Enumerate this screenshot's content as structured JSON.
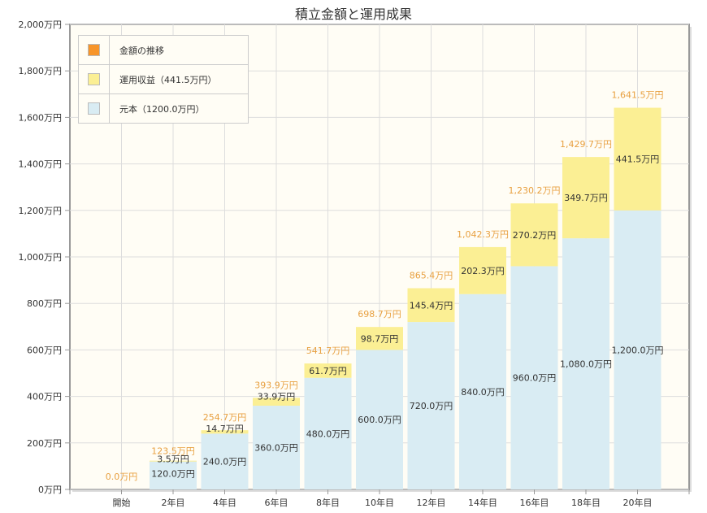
{
  "chart_data": {
    "type": "bar",
    "stacked": true,
    "title": "積立金額と運用成果",
    "categories": [
      "開始",
      "2年目",
      "4年目",
      "6年目",
      "8年目",
      "10年目",
      "12年目",
      "14年目",
      "16年目",
      "18年目",
      "20年目"
    ],
    "series": [
      {
        "name": "元本（1200.0万円）",
        "color": "#d9ecf3",
        "values": [
          0,
          120,
          240,
          360,
          480,
          600,
          720,
          840,
          960,
          1080,
          1200
        ],
        "labels": [
          "",
          "120.0万円",
          "240.0万円",
          "360.0万円",
          "480.0万円",
          "600.0万円",
          "720.0万円",
          "840.0万円",
          "960.0万円",
          "1,080.0万円",
          "1,200.0万円"
        ]
      },
      {
        "name": "運用収益（441.5万円）",
        "color": "#fbef94",
        "values": [
          0,
          3.5,
          14.7,
          33.9,
          61.7,
          98.7,
          145.4,
          202.3,
          270.2,
          349.7,
          441.5
        ],
        "labels": [
          "",
          "3.5万円",
          "14.7万円",
          "33.9万円",
          "61.7万円",
          "98.7万円",
          "145.4万円",
          "202.3万円",
          "270.2万円",
          "349.7万円",
          "441.5万円"
        ]
      }
    ],
    "totals": {
      "name": "金額の推移",
      "color": "#f7952a",
      "label_color": "#e8a040",
      "labels": [
        "0.0万円",
        "123.5万円",
        "254.7万円",
        "393.9万円",
        "541.7万円",
        "698.7万円",
        "865.4万円",
        "1,042.3万円",
        "1,230.2万円",
        "1,429.7万円",
        "1,641.5万円"
      ]
    },
    "ylim": [
      0,
      2000
    ],
    "yticks": [
      0,
      200,
      400,
      600,
      800,
      1000,
      1200,
      1400,
      1600,
      1800,
      2000
    ],
    "ytick_labels": [
      "0万円",
      "200万円",
      "400万円",
      "600万円",
      "800万円",
      "1,000万円",
      "1,200万円",
      "1,400万円",
      "1,600万円",
      "1,800万円",
      "2,000万円"
    ],
    "grid": true,
    "legend_position": "top-left",
    "background": "#fffdf5"
  }
}
